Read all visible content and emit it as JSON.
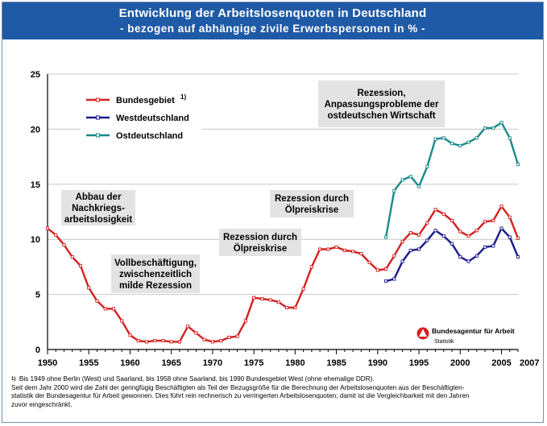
{
  "header": {
    "title": "Entwicklung der Arbeitslosenquoten in Deutschland",
    "subtitle": "-  bezogen auf abhängige zivile Erwerbspersonen in % -"
  },
  "chart_data": {
    "type": "line",
    "title": "Entwicklung der Arbeitslosenquoten in Deutschland",
    "subtitle": "bezogen auf abhängige zivile Erwerbspersonen in %",
    "xlim": [
      1950,
      2007
    ],
    "ylim": [
      0,
      25
    ],
    "x_ticks": [
      "1950",
      "1955",
      "1960",
      "1965",
      "1970",
      "1975",
      "1980",
      "1985",
      "1990",
      "1995",
      "2000",
      "2005"
    ],
    "x_end_label": "2007",
    "y_ticks": [
      "0",
      "5",
      "10",
      "15",
      "20",
      "25"
    ],
    "grid": "horizontal",
    "series": [
      {
        "name": "Bundesgebiet",
        "footnote": "1)",
        "color": "#d42020",
        "x": [
          1950,
          1951,
          1952,
          1953,
          1954,
          1955,
          1956,
          1957,
          1958,
          1959,
          1960,
          1961,
          1962,
          1963,
          1964,
          1965,
          1966,
          1967,
          1968,
          1969,
          1970,
          1971,
          1972,
          1973,
          1974,
          1975,
          1976,
          1977,
          1978,
          1979,
          1980,
          1981,
          1982,
          1983,
          1984,
          1985,
          1986,
          1987,
          1988,
          1989,
          1990,
          1991,
          1992,
          1993,
          1994,
          1995,
          1996,
          1997,
          1998,
          1999,
          2000,
          2001,
          2002,
          2003,
          2004,
          2005,
          2006,
          2007
        ],
        "values": [
          11.0,
          10.4,
          9.5,
          8.4,
          7.6,
          5.6,
          4.4,
          3.7,
          3.7,
          2.6,
          1.3,
          0.8,
          0.7,
          0.8,
          0.8,
          0.7,
          0.7,
          2.1,
          1.5,
          0.9,
          0.7,
          0.8,
          1.1,
          1.2,
          2.6,
          4.7,
          4.6,
          4.5,
          4.3,
          3.8,
          3.8,
          5.5,
          7.5,
          9.1,
          9.1,
          9.3,
          9.0,
          8.9,
          8.7,
          7.9,
          7.2,
          7.3,
          8.5,
          9.8,
          10.6,
          10.4,
          11.5,
          12.7,
          12.3,
          11.7,
          10.7,
          10.3,
          10.8,
          11.6,
          11.7,
          13.0,
          12.0,
          10.1
        ]
      },
      {
        "name": "Westdeutschland",
        "color": "#1a1a8c",
        "x": [
          1991,
          1992,
          1993,
          1994,
          1995,
          1996,
          1997,
          1998,
          1999,
          2000,
          2001,
          2002,
          2003,
          2004,
          2005,
          2006,
          2007
        ],
        "values": [
          6.2,
          6.4,
          8.0,
          9.0,
          9.1,
          9.9,
          10.8,
          10.3,
          9.6,
          8.4,
          8.0,
          8.5,
          9.3,
          9.4,
          11.0,
          10.2,
          8.4
        ]
      },
      {
        "name": "Ostdeutschland",
        "color": "#1a8a8a",
        "x": [
          1991,
          1992,
          1993,
          1994,
          1995,
          1996,
          1997,
          1998,
          1999,
          2000,
          2001,
          2002,
          2003,
          2004,
          2005,
          2006,
          2007
        ],
        "values": [
          10.2,
          14.4,
          15.4,
          15.7,
          14.8,
          16.6,
          19.1,
          19.2,
          18.7,
          18.5,
          18.8,
          19.2,
          20.1,
          20.1,
          20.6,
          19.2,
          16.8
        ]
      }
    ],
    "annotations": [
      {
        "lines": [
          "Abbau der",
          "Nachkriegs-",
          "arbeitslosigkeit"
        ]
      },
      {
        "lines": [
          "Vollbeschäftigung,",
          "zwischenzeitlich",
          "milde Rezession"
        ]
      },
      {
        "lines": [
          "Rezession durch",
          "Ölpreiskrise"
        ]
      },
      {
        "lines": [
          "Rezession durch",
          "Ölpreiskrise"
        ]
      },
      {
        "lines": [
          "Rezession,",
          "Anpassungsprobleme der",
          "ostdeutschen Wirtschaft"
        ]
      }
    ]
  },
  "logo": {
    "name": "Bundesagentur für Arbeit",
    "sub": "Statistik"
  },
  "footnote": {
    "marker": "1)",
    "line1": "Bis 1949 ohne Berlin (West) und Saarland, bis 1958 ohne Saarland, bis 1990 Bundesgebiet West (ohne ehemalige DDR).",
    "line2": "Seit dem Jahr 2000 wird die Zahl der geringfügig Beschäftigten als Teil der Bezugsgröße für die Berechnung der Arbeitslosenquoten aus der Beschäftigten-",
    "line3": "statistik der Bundesagentur für Arbeit gewonnen. Dies führt rein rechnerisch zu verringerten Arbeitslosenquoten; damit ist die Vergleichbarkeit mit den Jahren",
    "line4": "zuvor eingeschränkt."
  }
}
